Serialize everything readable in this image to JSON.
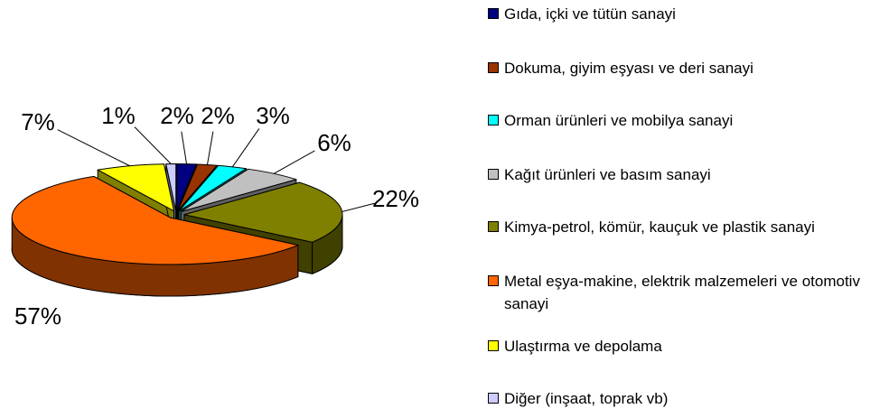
{
  "chart_data": {
    "type": "pie3d",
    "categories": [
      "Gıda, içki ve tütün sanayi",
      "Dokuma, giyim eşyası ve deri sanayi",
      "Orman ürünleri ve mobilya sanayi",
      "Kağıt ürünleri ve basım sanayi",
      "Kimya-petrol, kömür, kauçuk ve plastik sanayi",
      "Metal eşya-makine, elektrik malzemeleri ve otomotiv sanayi",
      "Ulaştırma ve depolama",
      "Diğer (inşaat, toprak vb)"
    ],
    "values": [
      2,
      2,
      3,
      6,
      22,
      57,
      7,
      1
    ],
    "value_labels": [
      "2%",
      "2%",
      "3%",
      "6%",
      "22%",
      "57%",
      "7%",
      "1%"
    ],
    "colors": [
      "#000080",
      "#993300",
      "#00FFFF",
      "#C0C0C0",
      "#808000",
      "#FF6600",
      "#FFFF00",
      "#CCCCFF"
    ],
    "legend": "right"
  }
}
